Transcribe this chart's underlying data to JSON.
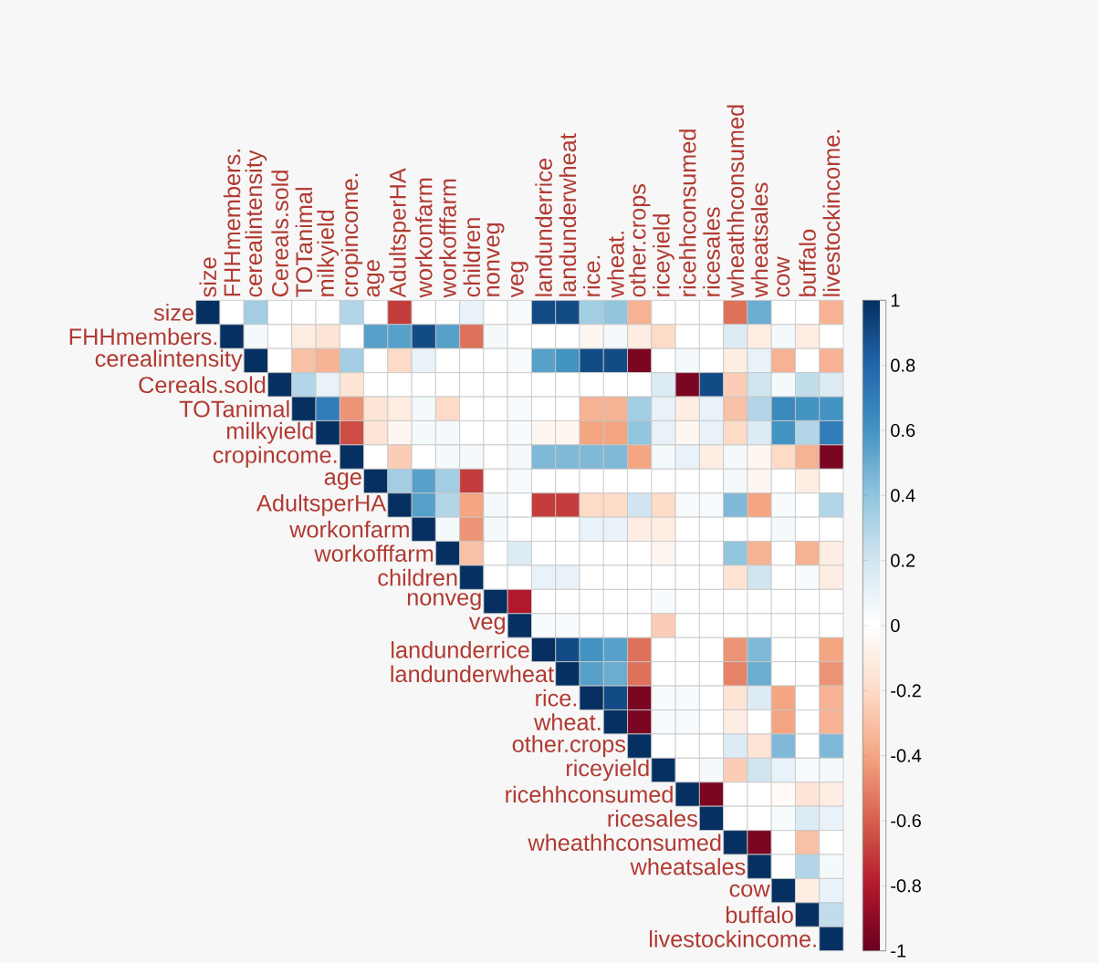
{
  "chart_data": {
    "type": "heatmap",
    "categories": [
      "size",
      "FHHmembers.",
      "cerealintensity",
      "Cereals.sold",
      "TOTanimal",
      "milkyield",
      "cropincome.",
      "age",
      "AdultsperHA",
      "workonfarm",
      "workofffarm",
      "children",
      "nonveg",
      "veg",
      "landunderrice",
      "landunderwheat",
      "rice.",
      "wheat.",
      "other.crops",
      "riceyield",
      "ricehhconsumed",
      "ricesales",
      "wheathhconsumed",
      "wheatsales",
      "cow",
      "buffalo",
      "livestockincome."
    ],
    "y_categories": [
      "size",
      "FHHmembers.",
      "cerealintensity",
      "Cereals.sold",
      "TOTanimal",
      "milkyield",
      "cropincome.",
      "age",
      "AdultsperHA",
      "workonfarm",
      "workofffarm",
      "children",
      "nonveg",
      "veg",
      "landunderrice",
      "landunderwheat",
      "rice.",
      "wheat.",
      "other.crops",
      "riceyield",
      "ricehhconsumed",
      "ricesales",
      "wheathhconsumed",
      "wheatsales",
      "cow",
      "buffalo",
      "livestockincome."
    ],
    "cells": [
      [
        1,
        0,
        0.35,
        0,
        0,
        0,
        0.3,
        0,
        -0.7,
        0,
        0,
        0.1,
        0,
        0.03,
        0.9,
        0.9,
        0.35,
        0.4,
        -0.35,
        0,
        0,
        0,
        -0.55,
        0.5,
        0,
        0,
        -0.35
      ],
      [
        null,
        1,
        0.05,
        0,
        -0.1,
        -0.15,
        0,
        0.55,
        0.55,
        0.9,
        0.55,
        -0.55,
        0.05,
        0,
        0,
        0,
        -0.05,
        0.05,
        -0.1,
        -0.2,
        0,
        0,
        0.15,
        -0.1,
        0.05,
        -0.1,
        0
      ],
      [
        null,
        null,
        1,
        0,
        -0.3,
        -0.35,
        0.35,
        0,
        -0.2,
        0.1,
        0,
        0,
        0,
        0.03,
        0.55,
        0.6,
        0.9,
        0.9,
        -0.95,
        0,
        0.05,
        0,
        -0.1,
        0.1,
        -0.35,
        0,
        -0.35
      ],
      [
        null,
        null,
        null,
        1,
        0.3,
        0.1,
        -0.15,
        0,
        0,
        0,
        0,
        0,
        0,
        0,
        0,
        0,
        0,
        0,
        0,
        0.15,
        -0.95,
        0.9,
        -0.25,
        0.2,
        0.05,
        0.25,
        0.15
      ],
      [
        null,
        null,
        null,
        null,
        1,
        0.7,
        -0.45,
        -0.15,
        -0.1,
        0.05,
        -0.2,
        0,
        0,
        0.03,
        0,
        0,
        -0.35,
        -0.35,
        0.35,
        0.1,
        -0.1,
        0.1,
        -0.3,
        0.3,
        0.65,
        0.6,
        0.6
      ],
      [
        null,
        null,
        null,
        null,
        null,
        1,
        -0.65,
        -0.15,
        -0.05,
        0.05,
        0.05,
        0,
        0,
        0.03,
        -0.05,
        -0.05,
        -0.4,
        -0.4,
        0.4,
        0.1,
        -0.05,
        0.1,
        -0.2,
        0.15,
        0.6,
        0.3,
        0.7
      ],
      [
        null,
        null,
        null,
        null,
        null,
        null,
        1,
        0,
        -0.25,
        0,
        0.05,
        0.05,
        0,
        0.05,
        0.45,
        0.45,
        0.45,
        0.45,
        -0.4,
        0.05,
        0.1,
        -0.1,
        0.05,
        -0.05,
        -0.2,
        -0.35,
        -0.95
      ],
      [
        null,
        null,
        null,
        null,
        null,
        null,
        null,
        1,
        0.35,
        0.55,
        0.35,
        -0.7,
        0,
        0.03,
        0,
        0,
        0,
        0,
        0,
        0,
        0,
        0,
        0.05,
        -0.05,
        0,
        -0.1,
        0
      ],
      [
        null,
        null,
        null,
        null,
        null,
        null,
        null,
        null,
        1,
        0.55,
        0.3,
        -0.4,
        0.05,
        0,
        -0.7,
        -0.7,
        -0.2,
        -0.2,
        0.2,
        -0.2,
        0.03,
        0.03,
        0.45,
        -0.4,
        0.03,
        0,
        0.3
      ],
      [
        null,
        null,
        null,
        null,
        null,
        null,
        null,
        null,
        null,
        1,
        0.05,
        -0.45,
        0.05,
        0,
        0,
        0,
        0.1,
        0.1,
        -0.1,
        -0.1,
        0,
        0,
        0,
        0,
        0.05,
        0,
        0
      ],
      [
        null,
        null,
        null,
        null,
        null,
        null,
        null,
        null,
        null,
        null,
        1,
        -0.3,
        0,
        0.15,
        0,
        0,
        0,
        0,
        0,
        -0.05,
        0,
        0,
        0.4,
        -0.35,
        0,
        -0.35,
        -0.1
      ],
      [
        null,
        null,
        null,
        null,
        null,
        null,
        null,
        null,
        null,
        null,
        null,
        1,
        0,
        0,
        0.1,
        0.1,
        0,
        0,
        0,
        0,
        0,
        0,
        -0.15,
        0.2,
        0,
        0.03,
        -0.1
      ],
      [
        null,
        null,
        null,
        null,
        null,
        null,
        null,
        null,
        null,
        null,
        null,
        null,
        1,
        -0.8,
        0,
        0,
        0,
        0,
        0,
        0.03,
        0,
        0,
        0,
        0,
        0,
        0,
        0
      ],
      [
        null,
        null,
        null,
        null,
        null,
        null,
        null,
        null,
        null,
        null,
        null,
        null,
        null,
        1,
        0.03,
        0.03,
        0,
        0,
        0,
        -0.25,
        0,
        0,
        0,
        0,
        0,
        0,
        0
      ],
      [
        null,
        null,
        null,
        null,
        null,
        null,
        null,
        null,
        null,
        null,
        null,
        null,
        null,
        null,
        1,
        0.9,
        0.6,
        0.55,
        -0.55,
        0,
        0,
        0,
        -0.45,
        0.45,
        0,
        0,
        -0.4
      ],
      [
        null,
        null,
        null,
        null,
        null,
        null,
        null,
        null,
        null,
        null,
        null,
        null,
        null,
        null,
        null,
        1,
        0.55,
        0.5,
        -0.55,
        0,
        0,
        0,
        -0.5,
        0.5,
        0,
        0,
        -0.45
      ],
      [
        null,
        null,
        null,
        null,
        null,
        null,
        null,
        null,
        null,
        null,
        null,
        null,
        null,
        null,
        null,
        null,
        1,
        0.9,
        -0.95,
        0.03,
        0.03,
        0,
        -0.15,
        0.15,
        -0.4,
        0,
        -0.35
      ],
      [
        null,
        null,
        null,
        null,
        null,
        null,
        null,
        null,
        null,
        null,
        null,
        null,
        null,
        null,
        null,
        null,
        null,
        1,
        -0.95,
        0.03,
        0.03,
        0,
        -0.1,
        0,
        -0.4,
        0,
        -0.35
      ],
      [
        null,
        null,
        null,
        null,
        null,
        null,
        null,
        null,
        null,
        null,
        null,
        null,
        null,
        null,
        null,
        null,
        null,
        null,
        1,
        0,
        0,
        0,
        0.15,
        -0.15,
        0.45,
        0,
        0.45
      ],
      [
        null,
        null,
        null,
        null,
        null,
        null,
        null,
        null,
        null,
        null,
        null,
        null,
        null,
        null,
        null,
        null,
        null,
        null,
        null,
        1,
        0,
        0.05,
        -0.25,
        0.2,
        0.1,
        0.03,
        0.05
      ],
      [
        null,
        null,
        null,
        null,
        null,
        null,
        null,
        null,
        null,
        null,
        null,
        null,
        null,
        null,
        null,
        null,
        null,
        null,
        null,
        null,
        1,
        -0.95,
        0,
        0,
        -0.03,
        -0.15,
        -0.1
      ],
      [
        null,
        null,
        null,
        null,
        null,
        null,
        null,
        null,
        null,
        null,
        null,
        null,
        null,
        null,
        null,
        null,
        null,
        null,
        null,
        null,
        null,
        1,
        0,
        0,
        0.03,
        0.15,
        0.1
      ],
      [
        null,
        null,
        null,
        null,
        null,
        null,
        null,
        null,
        null,
        null,
        null,
        null,
        null,
        null,
        null,
        null,
        null,
        null,
        null,
        null,
        null,
        null,
        1,
        -0.95,
        0,
        -0.3,
        0
      ],
      [
        null,
        null,
        null,
        null,
        null,
        null,
        null,
        null,
        null,
        null,
        null,
        null,
        null,
        null,
        null,
        null,
        null,
        null,
        null,
        null,
        null,
        null,
        null,
        1,
        0,
        0.3,
        0.05
      ],
      [
        null,
        null,
        null,
        null,
        null,
        null,
        null,
        null,
        null,
        null,
        null,
        null,
        null,
        null,
        null,
        null,
        null,
        null,
        null,
        null,
        null,
        null,
        null,
        null,
        1,
        -0.1,
        0.1
      ],
      [
        null,
        null,
        null,
        null,
        null,
        null,
        null,
        null,
        null,
        null,
        null,
        null,
        null,
        null,
        null,
        null,
        null,
        null,
        null,
        null,
        null,
        null,
        null,
        null,
        null,
        1,
        0.25
      ],
      [
        null,
        null,
        null,
        null,
        null,
        null,
        null,
        null,
        null,
        null,
        null,
        null,
        null,
        null,
        null,
        null,
        null,
        null,
        null,
        null,
        null,
        null,
        null,
        null,
        null,
        null,
        1
      ]
    ],
    "clim": [
      -1,
      1
    ],
    "cticks": [
      -1,
      -0.8,
      -0.6,
      -0.4,
      -0.2,
      0,
      0.2,
      0.4,
      0.6,
      0.8,
      1
    ]
  }
}
